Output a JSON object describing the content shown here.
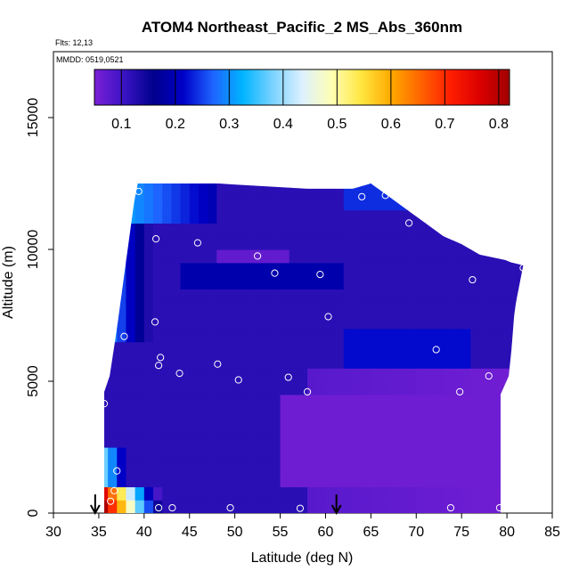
{
  "chart_data": {
    "type": "heatmap",
    "title": "ATOM4 Northeast_Pacific_2 MS_Abs_360nm",
    "subtitle_flights": "Flts: 12,13",
    "subtitle_dates": "MMDD: 0519,0521",
    "xlabel": "Latitude (deg N)",
    "ylabel": "Altitude (m)",
    "xlim": [
      30,
      85
    ],
    "ylim": [
      0,
      17500
    ],
    "x_ticks": [
      "30",
      "35",
      "40",
      "45",
      "50",
      "55",
      "60",
      "65",
      "70",
      "75",
      "80",
      "85"
    ],
    "y_ticks": [
      "0",
      "5000",
      "10000",
      "15000"
    ],
    "colorbar": {
      "range": [
        0.05,
        0.82
      ],
      "ticks": [
        "0.1",
        "0.2",
        "0.3",
        "0.4",
        "0.5",
        "0.6",
        "0.7",
        "0.8"
      ],
      "colors": [
        "#7a1fd6",
        "#3a14c4",
        "#00008c",
        "#0000c8",
        "#1e64ff",
        "#00b4ff",
        "#78d2ff",
        "#dcf0ff",
        "#ffffb4",
        "#ffe640",
        "#ffaa00",
        "#ff6400",
        "#ff1e00",
        "#dc0000",
        "#a00000"
      ]
    },
    "arrows_lat": [
      34.6,
      61.2
    ],
    "envelope": {
      "lat": [
        35.6,
        36.2,
        37,
        38.5,
        38.9,
        39.3,
        48,
        58,
        63,
        65,
        67,
        69,
        71,
        73,
        75,
        77,
        79.8,
        80.5,
        81.8,
        81,
        80.8,
        80.5,
        80.2,
        79.3,
        79.3
      ],
      "top_alt": [
        4600,
        5200,
        7000,
        10800,
        11800,
        12500,
        12500,
        12300,
        12300,
        12500,
        12000,
        11500,
        11000,
        10500,
        10200,
        9800,
        9600,
        9500,
        9400,
        8000,
        7500,
        6200,
        5200,
        4500,
        0
      ]
    },
    "samples": [
      {
        "lat": 39.4,
        "alt": 12200
      },
      {
        "lat": 64.0,
        "alt": 12000
      },
      {
        "lat": 66.6,
        "alt": 12050
      },
      {
        "lat": 69.2,
        "alt": 11000
      },
      {
        "lat": 41.3,
        "alt": 10400
      },
      {
        "lat": 45.9,
        "alt": 10250
      },
      {
        "lat": 52.5,
        "alt": 9750
      },
      {
        "lat": 54.4,
        "alt": 9100
      },
      {
        "lat": 59.4,
        "alt": 9050
      },
      {
        "lat": 76.2,
        "alt": 8850
      },
      {
        "lat": 81.8,
        "alt": 9300
      },
      {
        "lat": 41.2,
        "alt": 7250
      },
      {
        "lat": 60.3,
        "alt": 7450
      },
      {
        "lat": 37.8,
        "alt": 6700
      },
      {
        "lat": 72.2,
        "alt": 6200
      },
      {
        "lat": 41.8,
        "alt": 5900
      },
      {
        "lat": 48.1,
        "alt": 5650
      },
      {
        "lat": 41.6,
        "alt": 5600
      },
      {
        "lat": 43.9,
        "alt": 5300
      },
      {
        "lat": 50.4,
        "alt": 5050
      },
      {
        "lat": 55.9,
        "alt": 5150
      },
      {
        "lat": 58.0,
        "alt": 4600
      },
      {
        "lat": 74.8,
        "alt": 4600
      },
      {
        "lat": 78.0,
        "alt": 5200
      },
      {
        "lat": 80.2,
        "alt": 4400
      },
      {
        "lat": 35.6,
        "alt": 4150
      },
      {
        "lat": 37.0,
        "alt": 1600
      },
      {
        "lat": 36.7,
        "alt": 850
      },
      {
        "lat": 36.3,
        "alt": 450
      },
      {
        "lat": 41.6,
        "alt": 200
      },
      {
        "lat": 43.1,
        "alt": 200
      },
      {
        "lat": 49.5,
        "alt": 200
      },
      {
        "lat": 57.2,
        "alt": 180
      },
      {
        "lat": 73.8,
        "alt": 200
      },
      {
        "lat": 79.2,
        "alt": 200
      }
    ]
  }
}
